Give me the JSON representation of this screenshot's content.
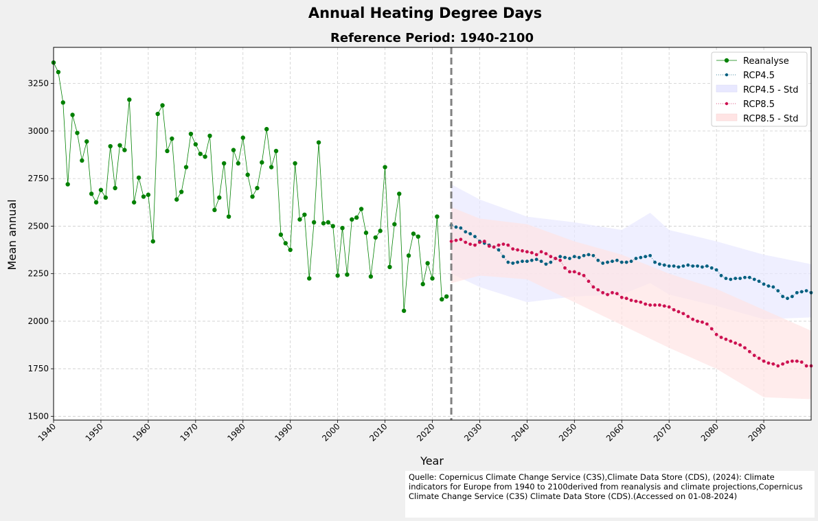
{
  "source_note": "Quelle: Copernicus Climate Change Service (C3S),Climate Data Store (CDS), (2024): Climate indicators for Europe from 1940 to 2100derived from reanalysis and climate projections,Copernicus Climate Change Service (C3S) Climate Data Store (CDS).(Accessed on 01-08-2024)",
  "chart_data": {
    "type": "line",
    "title": "Annual Heating Degree Days",
    "subtitle": "Reference Period: 1940-2100",
    "xlabel": "Year",
    "ylabel": "Mean annual",
    "xlim": [
      1940,
      2100
    ],
    "ylim": [
      1480,
      3440
    ],
    "xticks": [
      "1940",
      "1950",
      "1960",
      "1970",
      "1980",
      "1990",
      "2000",
      "2010",
      "2020",
      "2030",
      "2040",
      "2050",
      "2060",
      "2070",
      "2080",
      "2090"
    ],
    "yticks": [
      "1500",
      "1750",
      "2000",
      "2250",
      "2500",
      "2750",
      "3000",
      "3250"
    ],
    "grid": true,
    "legend_position": "top-right",
    "vline_x": 2024,
    "colors": {
      "reanalyse": "#008000",
      "rcp45": "#005f7f",
      "rcp45_band": "#e8e8ff",
      "rcp85": "#cc1050",
      "rcp85_band": "#ffe4e4",
      "vline": "#808080"
    },
    "series": [
      {
        "name": "Reanalyse",
        "x": [
          1940,
          1941,
          1942,
          1943,
          1944,
          1945,
          1946,
          1947,
          1948,
          1949,
          1950,
          1951,
          1952,
          1953,
          1954,
          1955,
          1956,
          1957,
          1958,
          1959,
          1960,
          1961,
          1962,
          1963,
          1964,
          1965,
          1966,
          1967,
          1968,
          1969,
          1970,
          1971,
          1972,
          1973,
          1974,
          1975,
          1976,
          1977,
          1978,
          1979,
          1980,
          1981,
          1982,
          1983,
          1984,
          1985,
          1986,
          1987,
          1988,
          1989,
          1990,
          1991,
          1992,
          1993,
          1994,
          1995,
          1996,
          1997,
          1998,
          1999,
          2000,
          2001,
          2002,
          2003,
          2004,
          2005,
          2006,
          2007,
          2008,
          2009,
          2010,
          2011,
          2012,
          2013,
          2014,
          2015,
          2016,
          2017,
          2018,
          2019,
          2020,
          2021,
          2022,
          2023
        ],
        "y": [
          3360,
          3310,
          3150,
          2720,
          3085,
          2990,
          2845,
          2945,
          2670,
          2625,
          2690,
          2650,
          2920,
          2700,
          2925,
          2900,
          3165,
          2625,
          2755,
          2655,
          2665,
          2420,
          3090,
          3135,
          2895,
          2960,
          2640,
          2680,
          2810,
          2985,
          2930,
          2880,
          2865,
          2975,
          2585,
          2650,
          2830,
          2550,
          2900,
          2830,
          2965,
          2770,
          2655,
          2700,
          2835,
          3010,
          2810,
          2895,
          2455,
          2410,
          2375,
          2830,
          2535,
          2560,
          2225,
          2520,
          2940,
          2515,
          2520,
          2500,
          2240,
          2490,
          2245,
          2535,
          2545,
          2590,
          2465,
          2235,
          2440,
          2475,
          2810,
          2285,
          2510,
          2670,
          2055,
          2345,
          2460,
          2445,
          2195,
          2305,
          2225,
          2550,
          2115,
          2130
        ]
      },
      {
        "name": "RCP4.5",
        "x": [
          2024,
          2025,
          2026,
          2027,
          2028,
          2029,
          2030,
          2031,
          2032,
          2033,
          2034,
          2035,
          2036,
          2037,
          2038,
          2039,
          2040,
          2041,
          2042,
          2043,
          2044,
          2045,
          2046,
          2047,
          2048,
          2049,
          2050,
          2051,
          2052,
          2053,
          2054,
          2055,
          2056,
          2057,
          2058,
          2059,
          2060,
          2061,
          2062,
          2063,
          2064,
          2065,
          2066,
          2067,
          2068,
          2069,
          2070,
          2071,
          2072,
          2073,
          2074,
          2075,
          2076,
          2077,
          2078,
          2079,
          2080,
          2081,
          2082,
          2083,
          2084,
          2085,
          2086,
          2087,
          2088,
          2089,
          2090,
          2091,
          2092,
          2093,
          2094,
          2095,
          2096,
          2097,
          2098,
          2099,
          2100
        ],
        "y": [
          2505,
          2495,
          2490,
          2470,
          2460,
          2445,
          2420,
          2410,
          2400,
          2390,
          2375,
          2340,
          2310,
          2305,
          2310,
          2315,
          2315,
          2320,
          2325,
          2315,
          2300,
          2310,
          2330,
          2340,
          2335,
          2330,
          2340,
          2335,
          2345,
          2350,
          2345,
          2320,
          2305,
          2310,
          2315,
          2320,
          2310,
          2310,
          2315,
          2330,
          2335,
          2340,
          2345,
          2310,
          2300,
          2295,
          2290,
          2290,
          2285,
          2290,
          2295,
          2290,
          2290,
          2285,
          2290,
          2280,
          2270,
          2240,
          2225,
          2220,
          2225,
          2225,
          2230,
          2230,
          2220,
          2210,
          2195,
          2185,
          2180,
          2160,
          2130,
          2120,
          2130,
          2150,
          2155,
          2160,
          2150
        ]
      },
      {
        "name": "RCP8.5",
        "x": [
          2024,
          2025,
          2026,
          2027,
          2028,
          2029,
          2030,
          2031,
          2032,
          2033,
          2034,
          2035,
          2036,
          2037,
          2038,
          2039,
          2040,
          2041,
          2042,
          2043,
          2044,
          2045,
          2046,
          2047,
          2048,
          2049,
          2050,
          2051,
          2052,
          2053,
          2054,
          2055,
          2056,
          2057,
          2058,
          2059,
          2060,
          2061,
          2062,
          2063,
          2064,
          2065,
          2066,
          2067,
          2068,
          2069,
          2070,
          2071,
          2072,
          2073,
          2074,
          2075,
          2076,
          2077,
          2078,
          2079,
          2080,
          2081,
          2082,
          2083,
          2084,
          2085,
          2086,
          2087,
          2088,
          2089,
          2090,
          2091,
          2092,
          2093,
          2094,
          2095,
          2096,
          2097,
          2098,
          2099,
          2100
        ],
        "y": [
          2420,
          2425,
          2430,
          2415,
          2405,
          2400,
          2415,
          2420,
          2395,
          2390,
          2400,
          2405,
          2400,
          2380,
          2375,
          2370,
          2365,
          2360,
          2350,
          2365,
          2355,
          2340,
          2330,
          2320,
          2280,
          2260,
          2260,
          2250,
          2240,
          2210,
          2180,
          2165,
          2150,
          2140,
          2150,
          2145,
          2125,
          2120,
          2110,
          2105,
          2100,
          2090,
          2085,
          2085,
          2085,
          2080,
          2075,
          2060,
          2050,
          2040,
          2025,
          2010,
          2000,
          1995,
          1985,
          1960,
          1930,
          1915,
          1905,
          1895,
          1885,
          1875,
          1860,
          1840,
          1820,
          1805,
          1790,
          1780,
          1775,
          1765,
          1775,
          1785,
          1790,
          1790,
          1785,
          1765,
          1765
        ]
      }
    ],
    "bands": [
      {
        "name": "RCP4.5 - Std",
        "x": [
          2024,
          2030,
          2040,
          2050,
          2060,
          2066,
          2070,
          2080,
          2090,
          2100
        ],
        "upper": [
          2720,
          2640,
          2550,
          2520,
          2480,
          2570,
          2480,
          2420,
          2350,
          2300
        ],
        "lower": [
          2250,
          2180,
          2100,
          2130,
          2140,
          2200,
          2140,
          2080,
          2010,
          2020
        ]
      },
      {
        "name": "RCP8.5 - Std",
        "x": [
          2024,
          2030,
          2040,
          2050,
          2060,
          2070,
          2080,
          2090,
          2100
        ],
        "upper": [
          2600,
          2540,
          2510,
          2420,
          2350,
          2250,
          2170,
          2060,
          1950
        ],
        "lower": [
          2200,
          2240,
          2220,
          2100,
          1980,
          1860,
          1750,
          1600,
          1590
        ]
      }
    ]
  }
}
